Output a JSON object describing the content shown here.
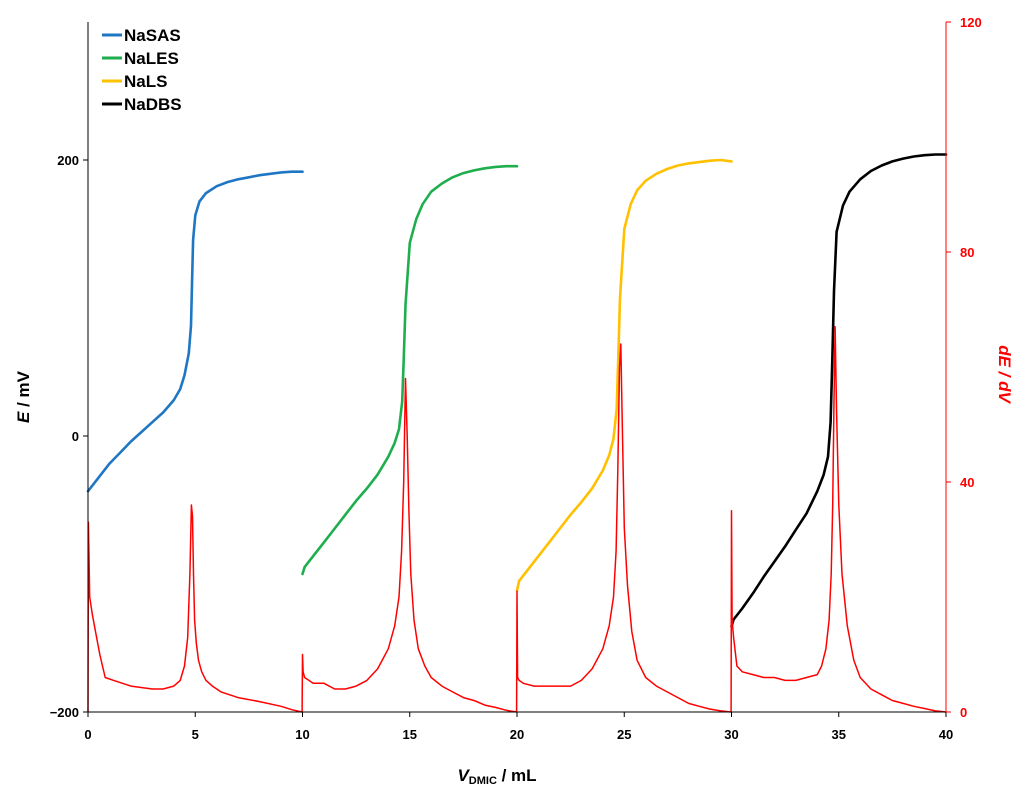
{
  "chart_data": {
    "type": "line",
    "x_axis": {
      "label_main": "V",
      "label_sub": "DMIC",
      "label_unit": " / mL",
      "range": [
        0,
        40
      ],
      "ticks": [
        "0",
        "5",
        "10",
        "15",
        "20",
        "25",
        "30",
        "35",
        "40"
      ]
    },
    "y_axis_left": {
      "label_main": "E",
      "label_unit": " / mV",
      "range": [
        -200,
        300
      ],
      "ticks": [
        "−200",
        "0",
        "200"
      ],
      "tick_values": [
        -200,
        0,
        200
      ]
    },
    "y_axis_right": {
      "label": "dE / dV",
      "range": [
        0,
        120
      ],
      "ticks": [
        "0",
        "40",
        "80",
        "120"
      ],
      "tick_values": [
        0,
        40,
        80,
        120
      ],
      "color": "#ff0000"
    },
    "legend": {
      "placement": "top-left",
      "entries": [
        {
          "name": "NaSAS",
          "color": "#1f77c4"
        },
        {
          "name": "NaLES",
          "color": "#1fae4e"
        },
        {
          "name": "NaLS",
          "color": "#ffc000"
        },
        {
          "name": "NaDBS",
          "color": "#000000"
        }
      ]
    },
    "series": [
      {
        "name": "NaSAS",
        "axis": "left",
        "color": "#1f77c4",
        "x": [
          0,
          0.5,
          1,
          1.5,
          2,
          2.5,
          3,
          3.5,
          4,
          4.3,
          4.5,
          4.7,
          4.8,
          4.85,
          4.9,
          5.0,
          5.2,
          5.5,
          6,
          6.5,
          7,
          7.5,
          8,
          8.5,
          9,
          9.5,
          10
        ],
        "y": [
          -40,
          -30,
          -20,
          -12,
          -4,
          3,
          10,
          17,
          26,
          34,
          44,
          60,
          80,
          110,
          142,
          160,
          170,
          176,
          181,
          184,
          186,
          187.5,
          189,
          190,
          191,
          191.5,
          191.5
        ]
      },
      {
        "name": "NaLES",
        "axis": "left",
        "color": "#1fae4e",
        "x": [
          10,
          10.1,
          10.5,
          11,
          11.5,
          12,
          12.5,
          13,
          13.5,
          14,
          14.3,
          14.5,
          14.65,
          14.72,
          14.8,
          15.0,
          15.3,
          15.6,
          16,
          16.5,
          17,
          17.5,
          18,
          18.5,
          19,
          19.5,
          20
        ],
        "y": [
          -100,
          -95,
          -87,
          -77,
          -67,
          -57,
          -47,
          -38,
          -28,
          -15,
          -5,
          5,
          25,
          55,
          95,
          140,
          157,
          168,
          177,
          183,
          187.5,
          190.5,
          192.5,
          194,
          195,
          195.5,
          195.5
        ]
      },
      {
        "name": "NaLS",
        "axis": "left",
        "color": "#ffc000",
        "x": [
          20,
          20.1,
          20.5,
          21,
          21.5,
          22,
          22.5,
          23,
          23.5,
          24,
          24.3,
          24.5,
          24.65,
          24.72,
          24.8,
          25.0,
          25.3,
          25.6,
          26,
          26.5,
          27,
          27.5,
          28,
          28.5,
          29,
          29.5,
          30
        ],
        "y": [
          -112,
          -105,
          -97,
          -87,
          -77,
          -67,
          -57,
          -48,
          -38,
          -25,
          -14,
          -2,
          20,
          55,
          100,
          150,
          168,
          178,
          185,
          190,
          193.5,
          196,
          197.5,
          198.5,
          199.5,
          200,
          199
        ]
      },
      {
        "name": "NaDBS",
        "axis": "left",
        "color": "#000000",
        "x": [
          30,
          30.1,
          30.5,
          31,
          31.5,
          32,
          32.5,
          33,
          33.5,
          34,
          34.3,
          34.5,
          34.62,
          34.7,
          34.78,
          34.9,
          35.2,
          35.5,
          36,
          36.5,
          37,
          37.5,
          38,
          38.5,
          39,
          39.5,
          40
        ],
        "y": [
          -138,
          -133,
          -125,
          -114,
          -102,
          -91,
          -80,
          -68,
          -56,
          -40,
          -28,
          -15,
          10,
          55,
          105,
          148,
          167,
          177,
          186,
          192,
          196,
          199,
          201,
          202.5,
          203.5,
          204,
          204
        ]
      },
      {
        "name": "dE/dV",
        "axis": "right",
        "color": "#ff0000",
        "x": [
          0,
          0.02,
          0.08,
          0.2,
          0.35,
          0.55,
          0.8,
          1.2,
          2,
          3,
          3.5,
          4,
          4.3,
          4.5,
          4.65,
          4.75,
          4.82,
          4.87,
          4.92,
          4.97,
          5.05,
          5.15,
          5.3,
          5.5,
          5.8,
          6.2,
          7,
          8,
          9,
          9.5,
          9.98,
          10,
          10.03,
          10.1,
          10.5,
          11,
          11.5,
          12,
          12.5,
          13,
          13.5,
          14,
          14.3,
          14.5,
          14.62,
          14.72,
          14.8,
          14.88,
          14.96,
          15.05,
          15.2,
          15.4,
          15.7,
          16,
          16.5,
          17,
          17.5,
          18,
          18.5,
          19,
          19.5,
          19.98,
          20,
          20.03,
          20.1,
          20.3,
          20.8,
          21.5,
          22.5,
          23,
          23.5,
          24,
          24.3,
          24.5,
          24.62,
          24.7,
          24.78,
          24.84,
          24.92,
          25.0,
          25.15,
          25.35,
          25.6,
          26,
          26.5,
          27,
          27.5,
          28,
          28.5,
          29,
          29.5,
          29.98,
          30,
          30.03,
          30.1,
          30.25,
          30.5,
          31,
          31.5,
          32,
          32.5,
          33,
          33.5,
          34,
          34.2,
          34.4,
          34.55,
          34.65,
          34.72,
          34.78,
          34.83,
          34.9,
          35.0,
          35.15,
          35.4,
          35.7,
          36,
          36.5,
          37,
          37.5,
          38,
          38.5,
          39,
          39.5,
          40
        ],
        "y": [
          0,
          33,
          20,
          17,
          14,
          10,
          6,
          5.5,
          4.5,
          4,
          4,
          4.5,
          5.5,
          8,
          13,
          24,
          36,
          34,
          24,
          16,
          12,
          9,
          7,
          5.5,
          4.5,
          3.5,
          2.5,
          1.8,
          1,
          0.4,
          0,
          10,
          7,
          6,
          5,
          5,
          4,
          4,
          4.5,
          5.5,
          7.5,
          11,
          15,
          20,
          28,
          40,
          58,
          48,
          35,
          24,
          16,
          11,
          8,
          6,
          4.5,
          3.5,
          2.5,
          2,
          1.2,
          0.8,
          0.3,
          0,
          21,
          6,
          5.5,
          5,
          4.5,
          4.5,
          4.5,
          5.5,
          7.5,
          11,
          15,
          20,
          28,
          42,
          60,
          64,
          48,
          32,
          22,
          14,
          9,
          6,
          4.5,
          3.5,
          2.5,
          1.5,
          1,
          0.5,
          0.2,
          0,
          35,
          16,
          13,
          8,
          7,
          6.5,
          6,
          6,
          5.5,
          5.5,
          6,
          6.5,
          8,
          11,
          16,
          24,
          36,
          54,
          67,
          52,
          36,
          24,
          15,
          9,
          6,
          4,
          3,
          2,
          1.5,
          1,
          0.6,
          0.2,
          0
        ]
      }
    ]
  }
}
